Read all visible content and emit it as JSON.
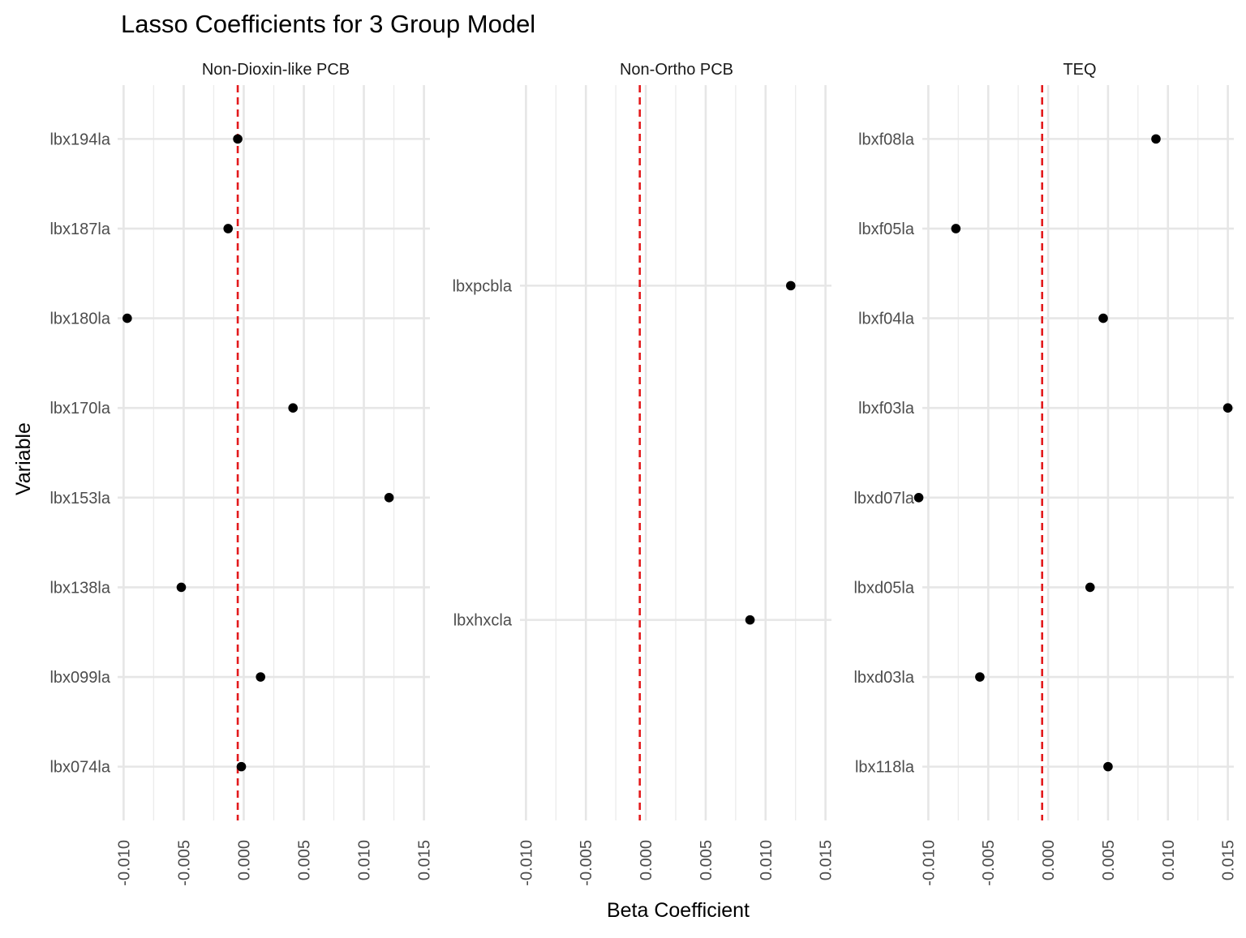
{
  "chart_data": {
    "type": "scatter",
    "title": "Lasso Coefficients for 3 Group Model",
    "xlabel": "Beta Coefficient",
    "ylabel": "Variable",
    "xlim": [
      -0.0105,
      0.0155
    ],
    "x_ticks": [
      "-0.010",
      "-0.005",
      "0.000",
      "0.005",
      "0.010",
      "0.015"
    ],
    "x_tick_values": [
      -0.01,
      -0.005,
      0.0,
      0.005,
      0.01,
      0.015
    ],
    "reference_line": {
      "x": -0.0005,
      "style": "dashed",
      "color": "#e31a1c"
    },
    "grid": true,
    "point_color": "#000000",
    "panels": [
      {
        "name": "Non-Dioxin-like PCB",
        "categories": [
          "lbx074la",
          "lbx099la",
          "lbx138la",
          "lbx153la",
          "lbx170la",
          "lbx180la",
          "lbx187la",
          "lbx194la"
        ],
        "values": [
          -0.0002,
          0.0014,
          -0.0052,
          0.0121,
          0.0041,
          -0.0097,
          -0.0013,
          -0.0005
        ]
      },
      {
        "name": "Non-Ortho PCB",
        "categories": [
          "lbxhxcla",
          "lbxpcbla"
        ],
        "values": [
          0.0087,
          0.0121
        ]
      },
      {
        "name": "TEQ",
        "categories": [
          "lbx118la",
          "lbxd03la",
          "lbxd05la",
          "lbxd07la",
          "lbxf03la",
          "lbxf04la",
          "lbxf05la",
          "lbxf08la"
        ],
        "values": [
          0.005,
          -0.0057,
          0.0035,
          -0.0108,
          0.015,
          0.0046,
          -0.0077,
          0.009
        ]
      }
    ]
  }
}
